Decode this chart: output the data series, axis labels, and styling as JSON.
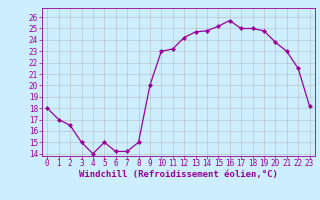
{
  "x": [
    0,
    1,
    2,
    3,
    4,
    5,
    6,
    7,
    8,
    9,
    10,
    11,
    12,
    13,
    14,
    15,
    16,
    17,
    18,
    19,
    20,
    21,
    22,
    23
  ],
  "y": [
    18,
    17,
    16.5,
    15,
    14,
    15,
    14.2,
    14.2,
    15,
    20,
    23,
    23.2,
    24.2,
    24.7,
    24.8,
    25.2,
    25.7,
    25,
    25,
    24.8,
    23.8,
    23,
    21.5,
    18.2
  ],
  "line_color": "#990099",
  "marker_color": "#990099",
  "bg_color": "#cceeff",
  "grid_color": "#b0b0b0",
  "xlabel": "Windchill (Refroidissement éolien,°C)",
  "xlim": [
    -0.5,
    23.5
  ],
  "ylim": [
    13.8,
    26.8
  ],
  "yticks": [
    14,
    15,
    16,
    17,
    18,
    19,
    20,
    21,
    22,
    23,
    24,
    25,
    26
  ],
  "xticks": [
    0,
    1,
    2,
    3,
    4,
    5,
    6,
    7,
    8,
    9,
    10,
    11,
    12,
    13,
    14,
    15,
    16,
    17,
    18,
    19,
    20,
    21,
    22,
    23
  ],
  "xlabel_color": "#990099",
  "tick_color": "#990099",
  "spine_color": "#990099",
  "tick_fontsize": 5.5,
  "label_fontsize": 6.5
}
